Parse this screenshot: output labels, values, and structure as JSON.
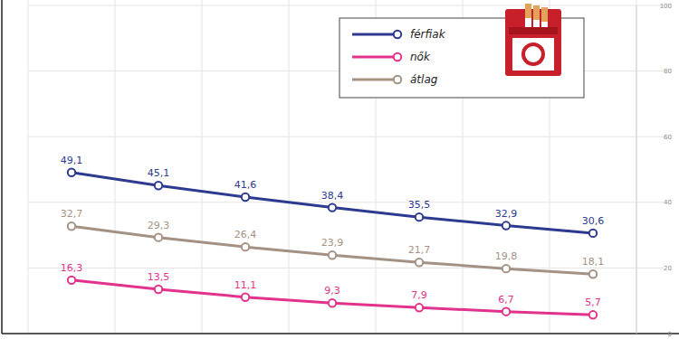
{
  "chart_data": {
    "type": "line",
    "categories": [
      null,
      null,
      null,
      null,
      null,
      null,
      null
    ],
    "series": [
      {
        "name": "férfiak",
        "color": "#2e3a8f",
        "marker": "circle",
        "line_style": "solid",
        "values": [
          49.1,
          45.1,
          41.6,
          38.4,
          35.5,
          32.9,
          30.6
        ],
        "value_labels": [
          "49,1",
          "45,1",
          "41,6",
          "38,4",
          "35,5",
          "32,9",
          "30,6"
        ]
      },
      {
        "name": "nők",
        "color": "#e2328b",
        "marker": "circle",
        "line_style": "solid",
        "values": [
          16.3,
          13.5,
          11.1,
          9.3,
          7.9,
          6.7,
          5.7
        ],
        "value_labels": [
          "16,3",
          "13,5",
          "11,1",
          "9,3",
          "7,9",
          "6,7",
          "5,7"
        ]
      },
      {
        "name": "átlag",
        "color": "#a39283",
        "marker": "circle",
        "line_style": "solid",
        "values": [
          32.7,
          29.3,
          26.4,
          23.9,
          21.7,
          19.8,
          18.1
        ],
        "value_labels": [
          "32,7",
          "29,3",
          "26,4",
          "23,9",
          "21,7",
          "19,8",
          "18,1"
        ]
      }
    ],
    "ylim": [
      0,
      100
    ],
    "yticks": [
      0,
      20,
      40,
      60,
      80,
      100
    ],
    "grid": true,
    "legend": "upper right",
    "data_labels": true
  }
}
